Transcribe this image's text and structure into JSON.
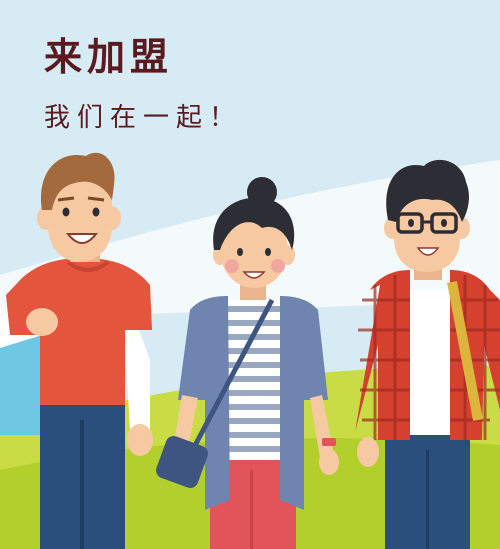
{
  "banner": {
    "title": "来加盟",
    "subtitle": "我们在一起！"
  },
  "colors": {
    "sky": "#d6ebf3",
    "cloud": "#f4f9fb",
    "grass_light": "#c9dc46",
    "grass_dark": "#b2cf2c",
    "title_text": "#5b1a1f",
    "skin": "#f7c9a2",
    "hair": "#2d2d35",
    "hair_brown": "#a36a3d",
    "shirt_red": "#e4553d",
    "jeans": "#2b4f7c",
    "cardigan": "#6f84ae",
    "plaid": "#d6412f",
    "bag_blue": "#6ec7e3",
    "pants_pink": "#e1555a"
  },
  "illustration": {
    "people": [
      "man-brown-hair",
      "woman-hair-bun",
      "man-glasses-plaid"
    ],
    "props": [
      "tote-bag",
      "crossbody-bag",
      "shoulder-strap"
    ]
  }
}
